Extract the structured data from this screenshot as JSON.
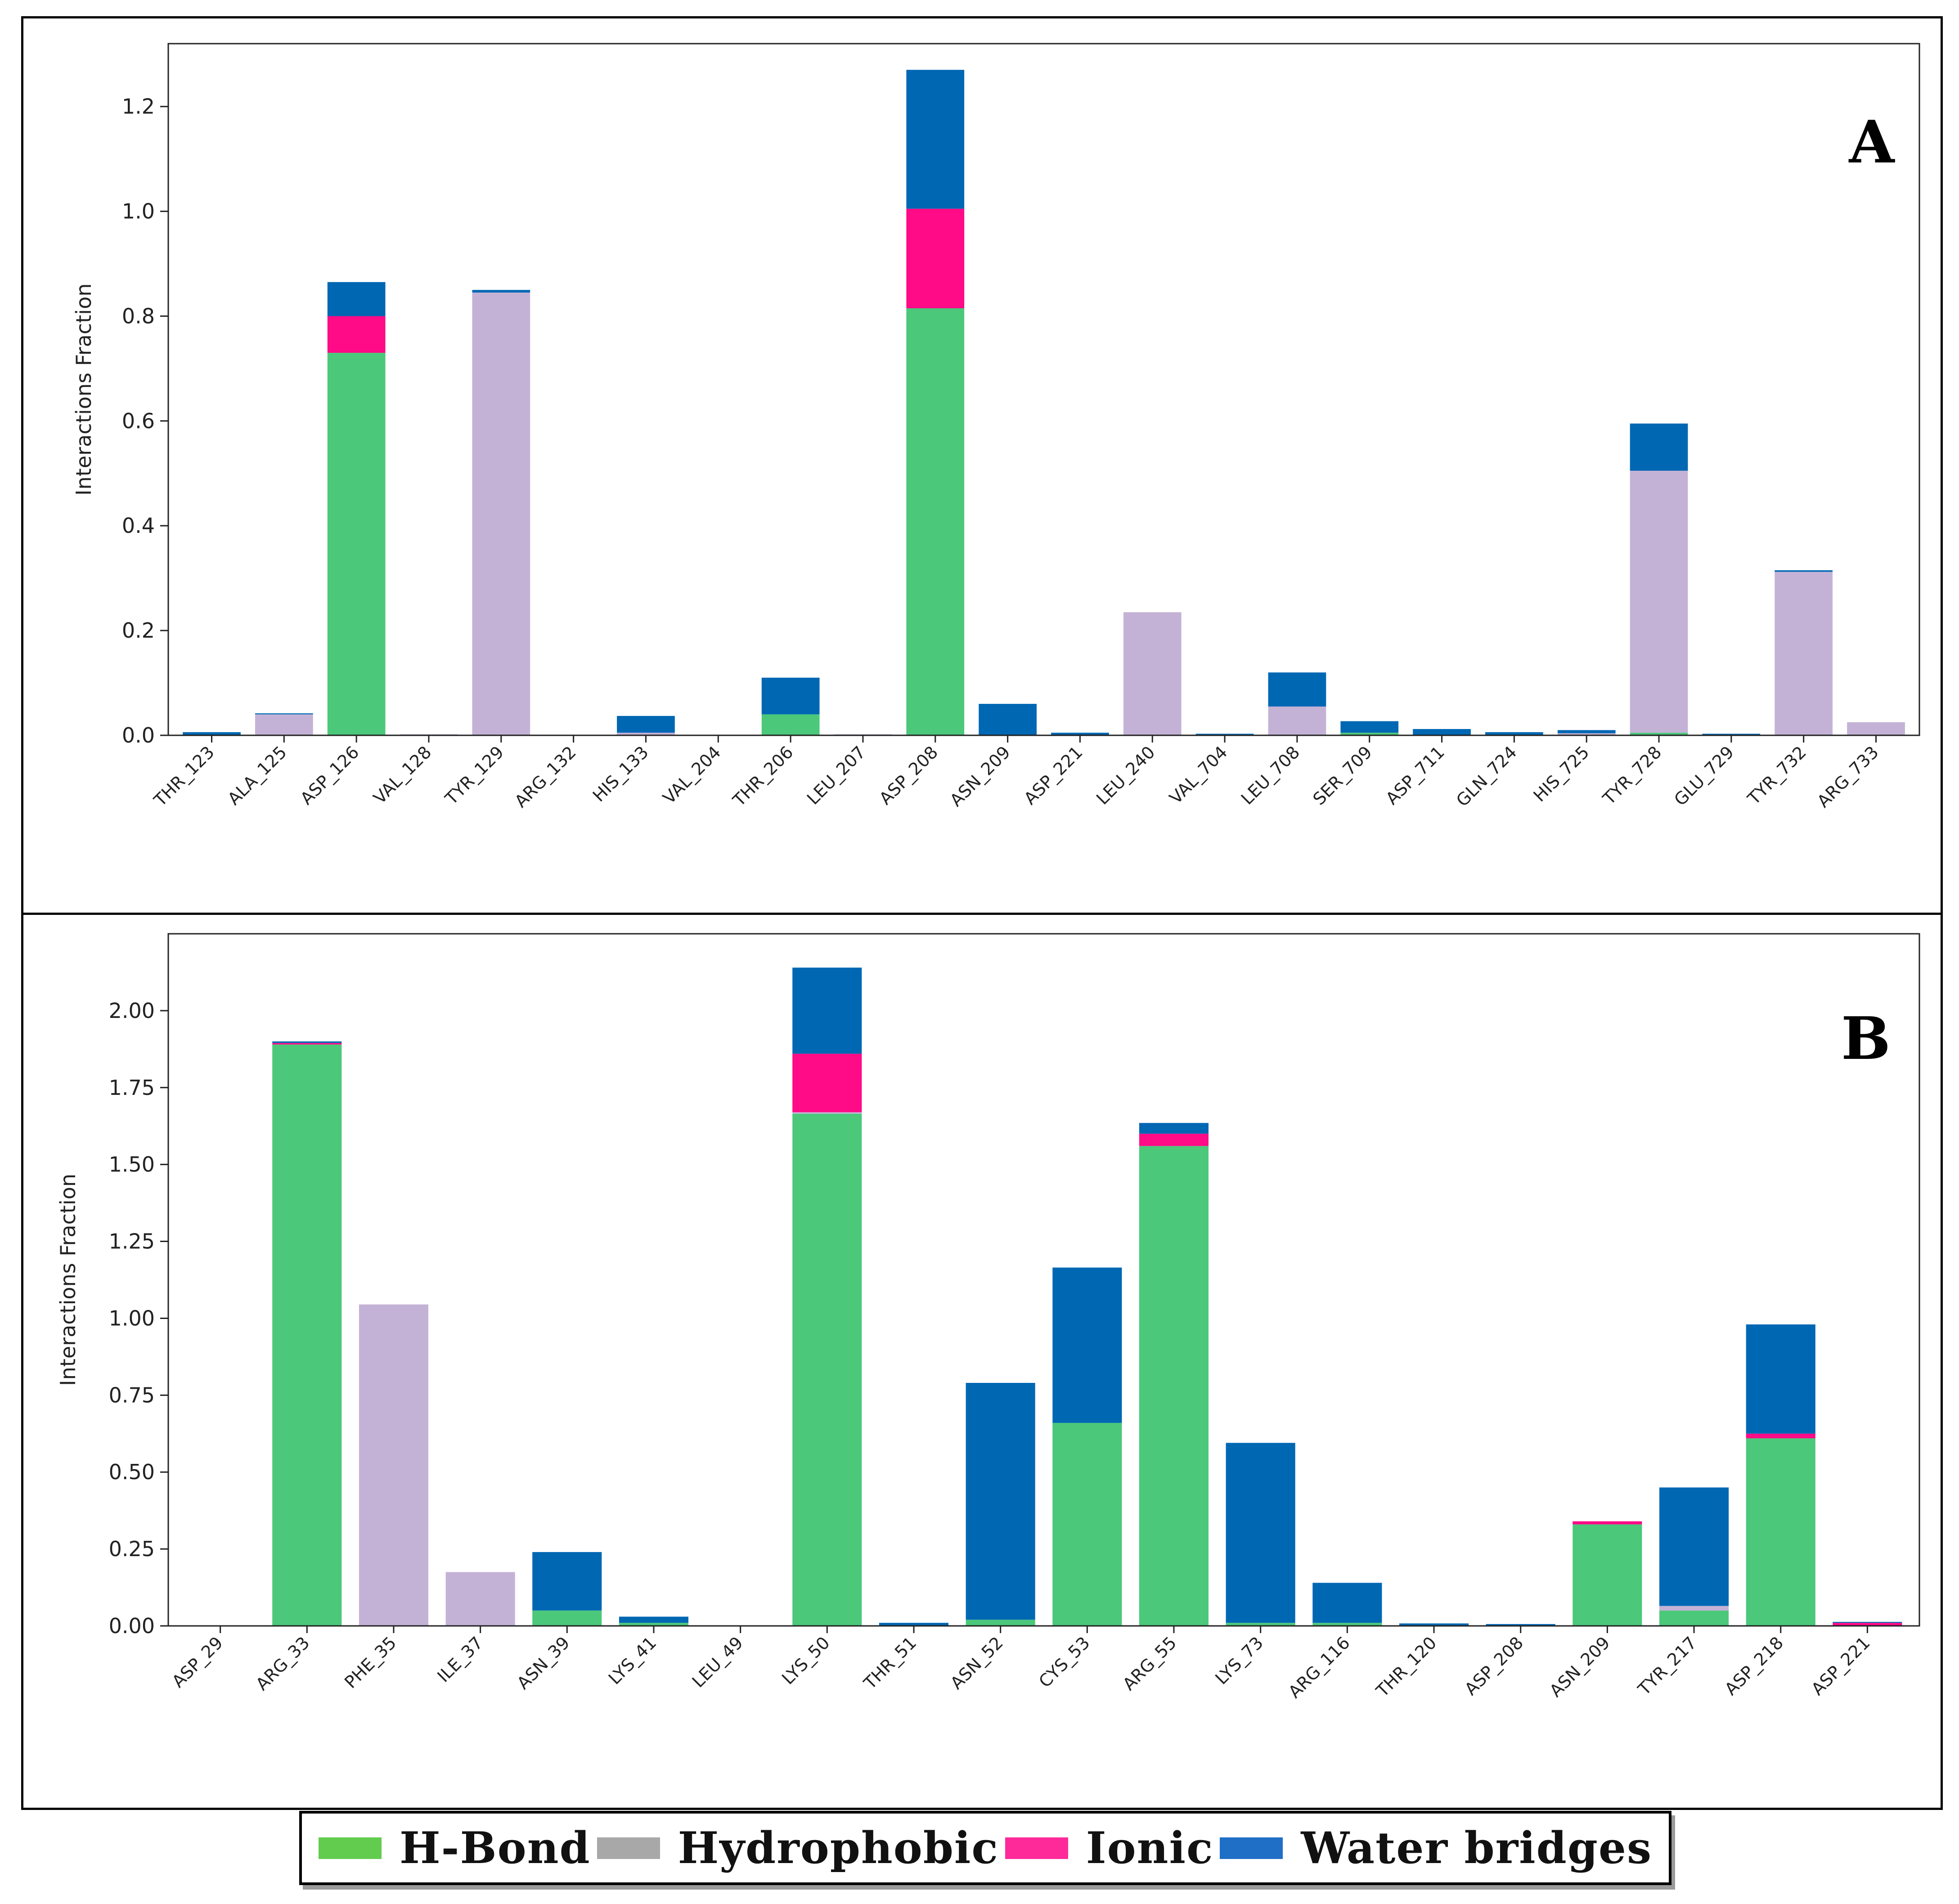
{
  "colors": {
    "hbond": "#4bc87a",
    "hydrophobic": "#c4b2d6",
    "ionic": "#ff0a87",
    "water": "#0067b3"
  },
  "legend": {
    "items": [
      {
        "label": "H-Bond",
        "swatch": "#62cc4e"
      },
      {
        "label": "Hydrophobic",
        "swatch": "#a8a8a8"
      },
      {
        "label": "Ionic",
        "swatch": "#ff2a9a"
      },
      {
        "label": "Water bridges",
        "swatch": "#1f6fc6"
      }
    ]
  },
  "chart_data": [
    {
      "type": "bar",
      "stacked": true,
      "panel_label": "A",
      "ylabel": "Interactions Fraction",
      "ylim": [
        0,
        1.32
      ],
      "yticks": [
        "0.0",
        "0.2",
        "0.4",
        "0.6",
        "0.8",
        "1.0",
        "1.2"
      ],
      "ytick_values": [
        0,
        0.2,
        0.4,
        0.6,
        0.8,
        1.0,
        1.2
      ],
      "categories": [
        "THR_123",
        "ALA_125",
        "ASP_126",
        "VAL_128",
        "TYR_129",
        "ARG_132",
        "HIS_133",
        "VAL_204",
        "THR_206",
        "LEU_207",
        "ASP_208",
        "ASN_209",
        "ASP_221",
        "LEU_240",
        "VAL_704",
        "LEU_708",
        "SER_709",
        "ASP_711",
        "GLN_724",
        "HIS_725",
        "TYR_728",
        "GLU_729",
        "TYR_732",
        "ARG_733"
      ],
      "series": [
        {
          "name": "H-Bond",
          "key": "hbond",
          "values": [
            0,
            0,
            0.73,
            0,
            0,
            0,
            0,
            0,
            0.04,
            0,
            0.815,
            0,
            0,
            0,
            0,
            0,
            0.005,
            0,
            0,
            0,
            0.005,
            0,
            0,
            0
          ]
        },
        {
          "name": "Hydrophobic",
          "key": "hydrophobic",
          "values": [
            0,
            0.04,
            0,
            0.002,
            0.845,
            0,
            0.005,
            0,
            0,
            0.002,
            0,
            0,
            0,
            0.235,
            0,
            0.055,
            0,
            0,
            0,
            0.004,
            0.5,
            0,
            0.312,
            0.025
          ]
        },
        {
          "name": "Ionic",
          "key": "ionic",
          "values": [
            0,
            0,
            0.07,
            0,
            0,
            0,
            0,
            0,
            0,
            0,
            0.19,
            0,
            0,
            0,
            0,
            0,
            0,
            0,
            0,
            0,
            0,
            0,
            0,
            0
          ]
        },
        {
          "name": "Water bridges",
          "key": "water",
          "values": [
            0.006,
            0.002,
            0.065,
            0,
            0.005,
            0,
            0.032,
            0,
            0.07,
            0,
            0.265,
            0.06,
            0.005,
            0,
            0.003,
            0.065,
            0.022,
            0.012,
            0.006,
            0.006,
            0.09,
            0.003,
            0.003,
            0
          ]
        }
      ]
    },
    {
      "type": "bar",
      "stacked": true,
      "panel_label": "B",
      "ylabel": "Interactions Fraction",
      "ylim": [
        0,
        2.25
      ],
      "yticks": [
        "0.00",
        "0.25",
        "0.50",
        "0.75",
        "1.00",
        "1.25",
        "1.50",
        "1.75",
        "2.00"
      ],
      "ytick_values": [
        0,
        0.25,
        0.5,
        0.75,
        1.0,
        1.25,
        1.5,
        1.75,
        2.0
      ],
      "categories": [
        "ASP_29",
        "ARG_33",
        "PHE_35",
        "ILE_37",
        "ASN_39",
        "LYS_41",
        "LEU_49",
        "LYS_50",
        "THR_51",
        "ASN_52",
        "CYS_53",
        "ARG_55",
        "LYS_73",
        "ARG_116",
        "THR_120",
        "ASP_208",
        "ASN_209",
        "TYR_217",
        "ASP_218",
        "ASP_221"
      ],
      "series": [
        {
          "name": "H-Bond",
          "key": "hbond",
          "values": [
            0,
            1.89,
            0,
            0,
            0.05,
            0.01,
            0,
            1.665,
            0,
            0.02,
            0.66,
            1.56,
            0.01,
            0.01,
            0,
            0,
            0.33,
            0.05,
            0.61,
            0
          ]
        },
        {
          "name": "Hydrophobic",
          "key": "hydrophobic",
          "values": [
            0,
            0,
            1.045,
            0.175,
            0,
            0,
            0,
            0.005,
            0,
            0,
            0,
            0,
            0,
            0,
            0,
            0,
            0,
            0.015,
            0,
            0
          ]
        },
        {
          "name": "Ionic",
          "key": "ionic",
          "values": [
            0,
            0.005,
            0,
            0,
            0,
            0,
            0,
            0.19,
            0,
            0,
            0,
            0.04,
            0,
            0,
            0,
            0,
            0.01,
            0,
            0.015,
            0.01
          ]
        },
        {
          "name": "Water bridges",
          "key": "water",
          "values": [
            0.002,
            0.005,
            0,
            0,
            0.19,
            0.02,
            0,
            0.28,
            0.01,
            0.77,
            0.505,
            0.035,
            0.585,
            0.13,
            0.008,
            0.006,
            0,
            0.385,
            0.355,
            0.003
          ]
        }
      ]
    }
  ]
}
